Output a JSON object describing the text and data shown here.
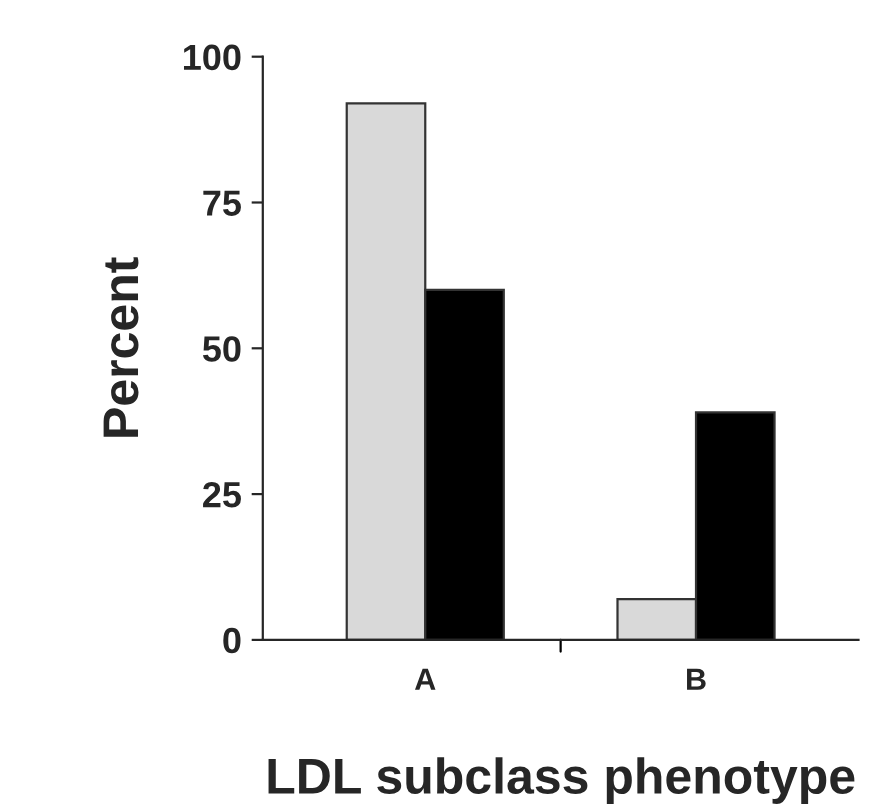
{
  "chart_data": {
    "type": "bar",
    "xlabel": "LDL subclass phenotype",
    "ylabel": "Percent",
    "categories": [
      "A",
      "B"
    ],
    "series": [
      {
        "color": "#d9d9d9",
        "values": [
          92,
          7
        ]
      },
      {
        "color": "#000000",
        "values": [
          60,
          39
        ]
      }
    ],
    "ylim": [
      0,
      100
    ],
    "yticks": [
      0,
      25,
      50,
      75,
      100
    ],
    "grid": false,
    "legend": false
  }
}
